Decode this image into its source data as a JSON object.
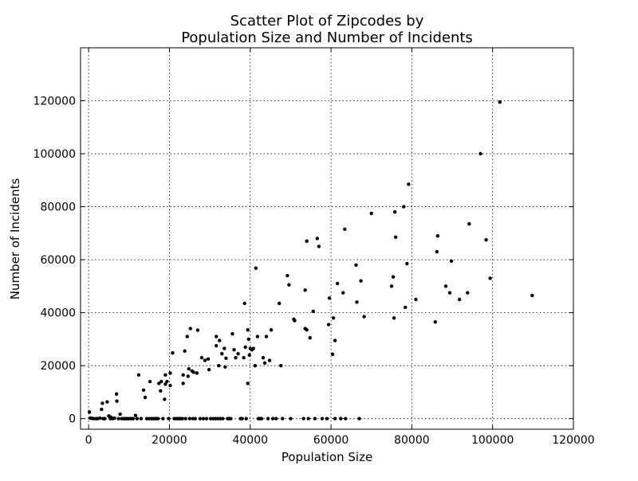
{
  "chart_data": {
    "type": "scatter",
    "title": [
      "Scatter Plot of Zipcodes by",
      "Population Size and Number of Incidents"
    ],
    "xlabel": "Population Size",
    "ylabel": "Number of Incidents",
    "xlim": [
      -2000,
      120000
    ],
    "ylim": [
      -4000,
      140000
    ],
    "xticks": [
      0,
      20000,
      40000,
      60000,
      80000,
      100000,
      120000
    ],
    "yticks": [
      0,
      20000,
      40000,
      60000,
      80000,
      100000,
      120000
    ],
    "xtick_labels": [
      "0",
      "20000",
      "40000",
      "60000",
      "80000",
      "100000",
      "120000"
    ],
    "ytick_labels": [
      "0",
      "20000",
      "40000",
      "60000",
      "80000",
      "100000",
      "120000"
    ],
    "grid": true,
    "marker_color": "#000000",
    "points": [
      [
        200,
        2500
      ],
      [
        400,
        200
      ],
      [
        800,
        100
      ],
      [
        1200,
        0
      ],
      [
        1800,
        0
      ],
      [
        2200,
        0
      ],
      [
        2800,
        200
      ],
      [
        3200,
        3500
      ],
      [
        3400,
        5800
      ],
      [
        3600,
        0
      ],
      [
        4000,
        0
      ],
      [
        4600,
        6300
      ],
      [
        5000,
        1000
      ],
      [
        5200,
        700
      ],
      [
        5400,
        0
      ],
      [
        5600,
        400
      ],
      [
        6000,
        0
      ],
      [
        6400,
        200
      ],
      [
        6900,
        9300
      ],
      [
        7000,
        6600
      ],
      [
        7400,
        0
      ],
      [
        7800,
        1700
      ],
      [
        8200,
        0
      ],
      [
        8600,
        0
      ],
      [
        9000,
        0
      ],
      [
        9400,
        0
      ],
      [
        9800,
        0
      ],
      [
        10200,
        0
      ],
      [
        10600,
        0
      ],
      [
        11000,
        0
      ],
      [
        11600,
        1200
      ],
      [
        12000,
        0
      ],
      [
        12400,
        16500
      ],
      [
        13000,
        0
      ],
      [
        13600,
        10800
      ],
      [
        14000,
        8000
      ],
      [
        14400,
        0
      ],
      [
        15000,
        0
      ],
      [
        15200,
        14000
      ],
      [
        15600,
        0
      ],
      [
        16000,
        0
      ],
      [
        16400,
        0
      ],
      [
        16800,
        0
      ],
      [
        17200,
        0
      ],
      [
        17400,
        13300
      ],
      [
        17800,
        10500
      ],
      [
        18000,
        14000
      ],
      [
        18400,
        0
      ],
      [
        18800,
        7300
      ],
      [
        19000,
        13000
      ],
      [
        19000,
        16500
      ],
      [
        19400,
        14000
      ],
      [
        19800,
        0
      ],
      [
        20200,
        12500
      ],
      [
        20200,
        17200
      ],
      [
        20800,
        24800
      ],
      [
        21200,
        0
      ],
      [
        21600,
        0
      ],
      [
        22000,
        0
      ],
      [
        22400,
        0
      ],
      [
        22800,
        0
      ],
      [
        23200,
        0
      ],
      [
        23400,
        16500
      ],
      [
        23400,
        13300
      ],
      [
        23800,
        25500
      ],
      [
        24000,
        0
      ],
      [
        24400,
        31000
      ],
      [
        24600,
        16000
      ],
      [
        24800,
        18800
      ],
      [
        25000,
        0
      ],
      [
        25200,
        34000
      ],
      [
        25600,
        18000
      ],
      [
        25800,
        0
      ],
      [
        26000,
        17500
      ],
      [
        26400,
        0
      ],
      [
        26800,
        17200
      ],
      [
        27000,
        33400
      ],
      [
        27600,
        0
      ],
      [
        28000,
        23000
      ],
      [
        28400,
        0
      ],
      [
        28800,
        22000
      ],
      [
        29200,
        0
      ],
      [
        29600,
        22500
      ],
      [
        29800,
        18500
      ],
      [
        30200,
        0
      ],
      [
        30800,
        0
      ],
      [
        31400,
        0
      ],
      [
        31600,
        27500
      ],
      [
        31600,
        31000
      ],
      [
        32000,
        0
      ],
      [
        32200,
        20000
      ],
      [
        32400,
        29500
      ],
      [
        32600,
        0
      ],
      [
        33000,
        24500
      ],
      [
        33200,
        0
      ],
      [
        33600,
        26500
      ],
      [
        33800,
        19500
      ],
      [
        34000,
        22800
      ],
      [
        34400,
        0
      ],
      [
        34800,
        0
      ],
      [
        35200,
        0
      ],
      [
        35600,
        32000
      ],
      [
        36000,
        26000
      ],
      [
        36400,
        23000
      ],
      [
        37000,
        24500
      ],
      [
        37600,
        0
      ],
      [
        38000,
        0
      ],
      [
        38400,
        23000
      ],
      [
        38600,
        43500
      ],
      [
        38800,
        27000
      ],
      [
        39000,
        0
      ],
      [
        39400,
        33500
      ],
      [
        39400,
        13300
      ],
      [
        39600,
        30000
      ],
      [
        39800,
        24000
      ],
      [
        40000,
        26500
      ],
      [
        40400,
        26000
      ],
      [
        40800,
        26500
      ],
      [
        41200,
        20000
      ],
      [
        41400,
        56800
      ],
      [
        41800,
        31000
      ],
      [
        42000,
        0
      ],
      [
        42400,
        0
      ],
      [
        42800,
        0
      ],
      [
        43200,
        23000
      ],
      [
        43600,
        21000
      ],
      [
        44000,
        31000
      ],
      [
        44400,
        0
      ],
      [
        44800,
        22000
      ],
      [
        45200,
        33500
      ],
      [
        45600,
        0
      ],
      [
        46400,
        0
      ],
      [
        47200,
        43500
      ],
      [
        47600,
        20000
      ],
      [
        48000,
        0
      ],
      [
        49200,
        54000
      ],
      [
        49600,
        50500
      ],
      [
        50000,
        0
      ],
      [
        50800,
        37500
      ],
      [
        51000,
        37000
      ],
      [
        53200,
        0
      ],
      [
        53600,
        48500
      ],
      [
        53600,
        34000
      ],
      [
        54000,
        67000
      ],
      [
        54000,
        33500
      ],
      [
        54400,
        0
      ],
      [
        54800,
        30500
      ],
      [
        55600,
        40500
      ],
      [
        56000,
        0
      ],
      [
        56600,
        68000
      ],
      [
        57000,
        65000
      ],
      [
        57800,
        0
      ],
      [
        59000,
        0
      ],
      [
        59400,
        35500
      ],
      [
        59600,
        45500
      ],
      [
        60400,
        24300
      ],
      [
        60600,
        38000
      ],
      [
        61000,
        29500
      ],
      [
        61000,
        0
      ],
      [
        61600,
        51000
      ],
      [
        62400,
        0
      ],
      [
        63000,
        47500
      ],
      [
        63400,
        71500
      ],
      [
        63600,
        0
      ],
      [
        66200,
        58000
      ],
      [
        66400,
        44000
      ],
      [
        67000,
        0
      ],
      [
        67400,
        52000
      ],
      [
        68200,
        38500
      ],
      [
        70000,
        77500
      ],
      [
        75000,
        50000
      ],
      [
        75400,
        53500
      ],
      [
        75600,
        38000
      ],
      [
        75800,
        78000
      ],
      [
        76000,
        68500
      ],
      [
        78000,
        80000
      ],
      [
        78400,
        42000
      ],
      [
        78800,
        58500
      ],
      [
        79200,
        88500
      ],
      [
        81000,
        45000
      ],
      [
        85800,
        36500
      ],
      [
        86200,
        63000
      ],
      [
        86400,
        69000
      ],
      [
        88400,
        50000
      ],
      [
        89400,
        47500
      ],
      [
        89800,
        59500
      ],
      [
        91800,
        45000
      ],
      [
        93800,
        47500
      ],
      [
        94200,
        73500
      ],
      [
        97000,
        100000
      ],
      [
        98400,
        67500
      ],
      [
        99400,
        53000
      ],
      [
        101800,
        119500
      ],
      [
        109800,
        46500
      ]
    ]
  }
}
